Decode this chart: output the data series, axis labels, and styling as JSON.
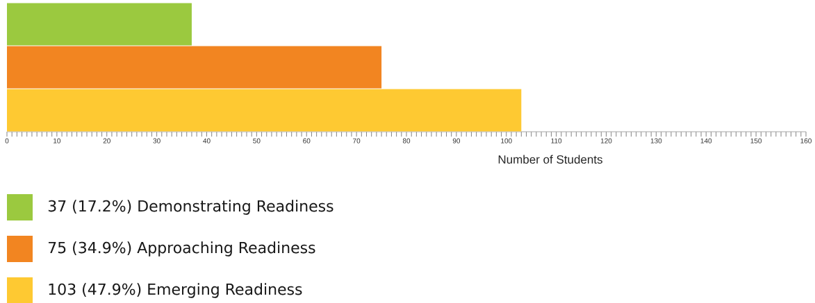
{
  "chart_data": {
    "type": "bar",
    "orientation": "horizontal",
    "xlabel": "Number of Students",
    "categories": [
      null
    ],
    "series": [
      {
        "name": "37 (17.2%) Demonstrating Readiness",
        "color": "#9bc93f",
        "values": [
          37
        ]
      },
      {
        "name": "75 (34.9%) Approaching Readiness",
        "color": "#f28521",
        "values": [
          75
        ]
      },
      {
        "name": "103 (47.9%) Emerging Readiness",
        "color": "#fec932",
        "values": [
          103
        ]
      }
    ],
    "xlim": [
      0,
      160
    ],
    "xticks": [
      0,
      10,
      20,
      30,
      40,
      50,
      60,
      70,
      80,
      90,
      100,
      110,
      120,
      130,
      140,
      150,
      160
    ],
    "legend": "bottom"
  }
}
